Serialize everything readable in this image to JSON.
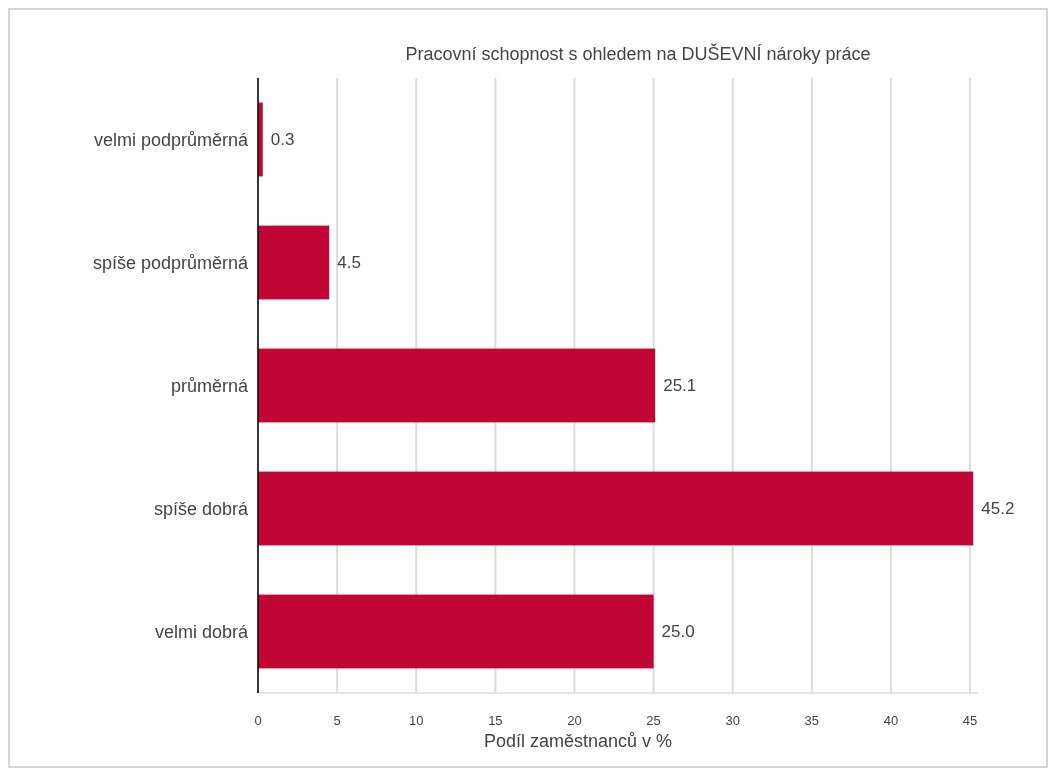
{
  "chart_data": {
    "type": "bar",
    "orientation": "horizontal",
    "title": "Pracovní schopnost s ohledem na DUŠEVNÍ nároky práce",
    "xlabel": "Podíl zaměstnanců v %",
    "categories": [
      "velmi podprůměrná",
      "spíše podprůměrná",
      "průměrná",
      "spíše dobrá",
      "velmi dobrá"
    ],
    "values": [
      0.3,
      4.5,
      25.1,
      45.2,
      25.0
    ],
    "value_labels": [
      "0.3",
      "4.5",
      "25.1",
      "45.2",
      "25.0"
    ],
    "color": "#c10534",
    "xlim": [
      0,
      45.5
    ],
    "xticks": [
      0,
      5,
      10,
      15,
      20,
      25,
      30,
      35,
      40,
      45
    ],
    "grid": "x"
  }
}
